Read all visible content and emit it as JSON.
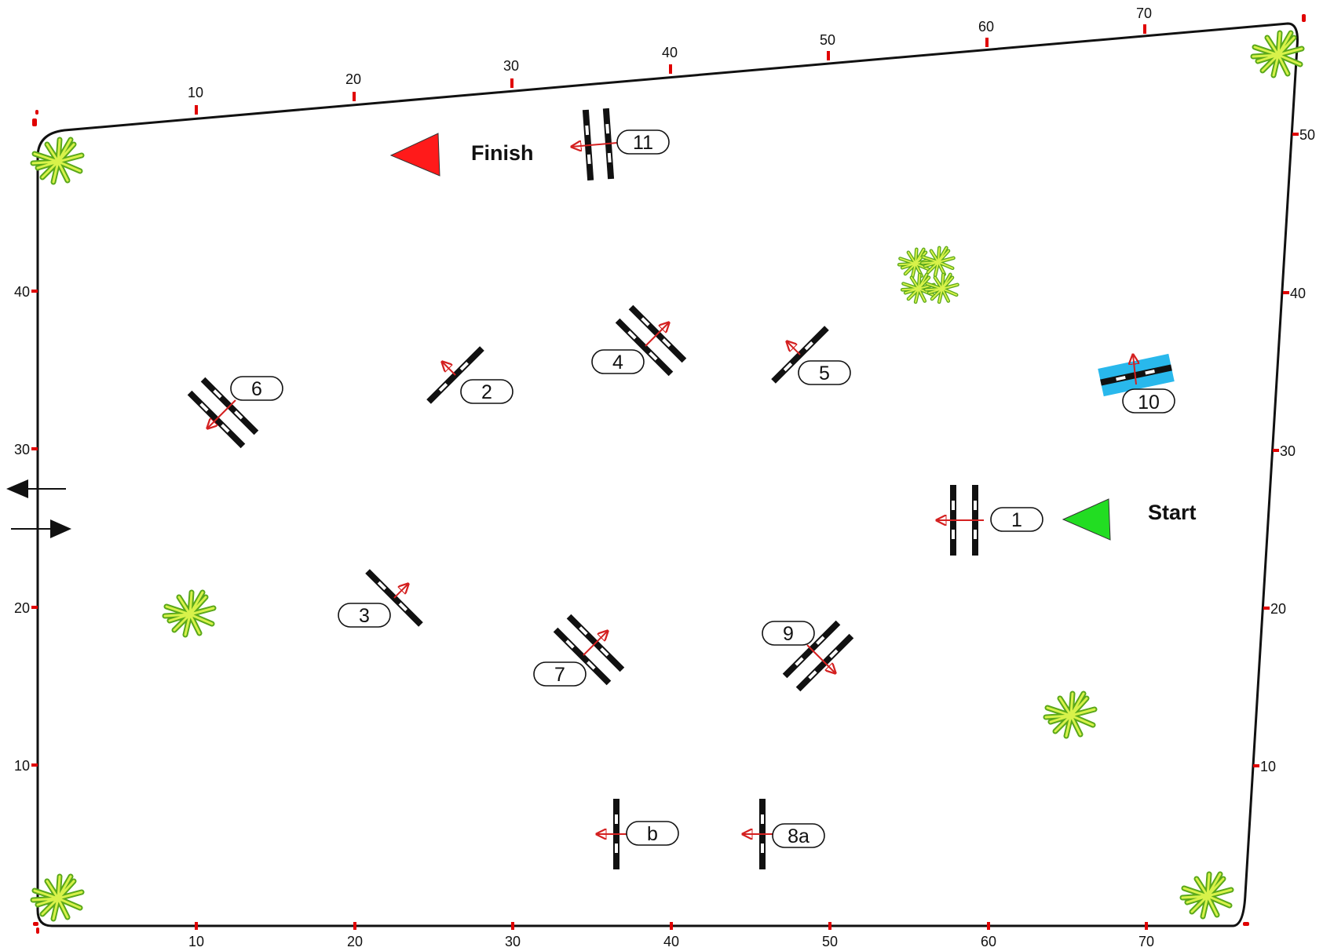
{
  "colors": {
    "fence": "#111111",
    "tick": "#e00000",
    "pole_dark": "#111111",
    "pole_light": "#ffffff",
    "direction_arrow": "#d42020",
    "finish_flag": "#ff1a1a",
    "start_flag": "#22dd22",
    "water": "#29b8ec",
    "plant_dark": "#5aa81a",
    "plant_light": "#d8f24a"
  },
  "axes": {
    "bottom_ticks": [
      "10",
      "20",
      "30",
      "40",
      "50",
      "60",
      "70"
    ],
    "top_ticks": [
      "10",
      "20",
      "30",
      "40",
      "50",
      "60",
      "70"
    ],
    "left_ticks": [
      "10",
      "20",
      "30",
      "40"
    ],
    "right_ticks": [
      "10",
      "20",
      "30",
      "40",
      "50"
    ]
  },
  "markers": {
    "finish_label": "Finish",
    "start_label": "Start"
  },
  "obstacles": [
    {
      "id": "1",
      "label": "1",
      "kind": "oxer"
    },
    {
      "id": "2",
      "label": "2",
      "kind": "vertical"
    },
    {
      "id": "3",
      "label": "3",
      "kind": "vertical"
    },
    {
      "id": "4",
      "label": "4",
      "kind": "oxer"
    },
    {
      "id": "5",
      "label": "5",
      "kind": "vertical"
    },
    {
      "id": "6",
      "label": "6",
      "kind": "oxer"
    },
    {
      "id": "7",
      "label": "7",
      "kind": "oxer"
    },
    {
      "id": "8a",
      "label": "8a",
      "kind": "vertical"
    },
    {
      "id": "8b",
      "label": "b",
      "kind": "vertical"
    },
    {
      "id": "9",
      "label": "9",
      "kind": "oxer"
    },
    {
      "id": "10",
      "label": "10",
      "kind": "water"
    },
    {
      "id": "11",
      "label": "11",
      "kind": "oxer"
    }
  ],
  "entrance": {
    "exit_arrow_icon": "arrow-left-icon",
    "enter_arrow_icon": "arrow-right-icon"
  },
  "decorations": {
    "plant_icon": "plant-icon"
  }
}
